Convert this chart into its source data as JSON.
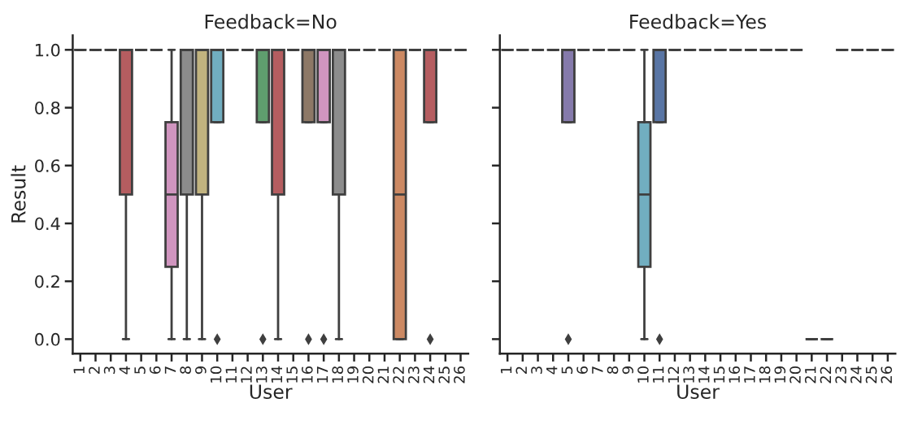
{
  "chart_data": [
    {
      "type": "box",
      "title": "Feedback=No",
      "xlabel": "User",
      "ylabel": "Result",
      "categories": [
        "1",
        "2",
        "3",
        "4",
        "5",
        "6",
        "7",
        "8",
        "9",
        "10",
        "11",
        "12",
        "13",
        "14",
        "15",
        "16",
        "17",
        "18",
        "19",
        "20",
        "21",
        "22",
        "23",
        "24",
        "25",
        "26"
      ],
      "colors": [
        null,
        null,
        null,
        "#b55d60",
        null,
        null,
        "#d095bf",
        "#8c8c8c",
        "#c1b37f",
        "#71aec0",
        null,
        null,
        "#5f9e6e",
        "#b55d60",
        null,
        "#8d7866",
        "#d095bf",
        "#8c8c8c",
        null,
        null,
        null,
        "#cc8963",
        null,
        "#b55d60",
        null,
        null
      ],
      "boxes": [
        {
          "low": 1,
          "q1": 1,
          "median": 1,
          "q3": 1,
          "high": 1
        },
        {
          "low": 1,
          "q1": 1,
          "median": 1,
          "q3": 1,
          "high": 1
        },
        {
          "low": 1,
          "q1": 1,
          "median": 1,
          "q3": 1,
          "high": 1
        },
        {
          "low": 0,
          "q1": 0.5,
          "median": 1,
          "q3": 1,
          "high": 1
        },
        {
          "low": 1,
          "q1": 1,
          "median": 1,
          "q3": 1,
          "high": 1
        },
        {
          "low": 1,
          "q1": 1,
          "median": 1,
          "q3": 1,
          "high": 1
        },
        {
          "low": 0,
          "q1": 0.25,
          "median": 0.5,
          "q3": 0.75,
          "high": 1
        },
        {
          "low": 0,
          "q1": 0.5,
          "median": 1,
          "q3": 1,
          "high": 1
        },
        {
          "low": 0,
          "q1": 0.5,
          "median": 1,
          "q3": 1,
          "high": 1
        },
        {
          "low": 0.75,
          "q1": 0.75,
          "median": 1,
          "q3": 1,
          "high": 1,
          "outliers": [
            0
          ]
        },
        {
          "low": 1,
          "q1": 1,
          "median": 1,
          "q3": 1,
          "high": 1
        },
        {
          "low": 1,
          "q1": 1,
          "median": 1,
          "q3": 1,
          "high": 1
        },
        {
          "low": 0.75,
          "q1": 0.75,
          "median": 1,
          "q3": 1,
          "high": 1,
          "outliers": [
            0
          ]
        },
        {
          "low": 0,
          "q1": 0.5,
          "median": 1,
          "q3": 1,
          "high": 1
        },
        {
          "low": 1,
          "q1": 1,
          "median": 1,
          "q3": 1,
          "high": 1
        },
        {
          "low": 0.75,
          "q1": 0.75,
          "median": 1,
          "q3": 1,
          "high": 1,
          "outliers": [
            0
          ]
        },
        {
          "low": 0.75,
          "q1": 0.75,
          "median": 1,
          "q3": 1,
          "high": 1,
          "outliers": [
            0
          ]
        },
        {
          "low": 0,
          "q1": 0.5,
          "median": 1,
          "q3": 1,
          "high": 1
        },
        {
          "low": 1,
          "q1": 1,
          "median": 1,
          "q3": 1,
          "high": 1
        },
        {
          "low": 1,
          "q1": 1,
          "median": 1,
          "q3": 1,
          "high": 1
        },
        {
          "low": 1,
          "q1": 1,
          "median": 1,
          "q3": 1,
          "high": 1
        },
        {
          "low": 0,
          "q1": 0,
          "median": 0.5,
          "q3": 1,
          "high": 1
        },
        {
          "low": 1,
          "q1": 1,
          "median": 1,
          "q3": 1,
          "high": 1
        },
        {
          "low": 0.75,
          "q1": 0.75,
          "median": 1,
          "q3": 1,
          "high": 1,
          "outliers": [
            0
          ]
        },
        {
          "low": 1,
          "q1": 1,
          "median": 1,
          "q3": 1,
          "high": 1
        },
        {
          "low": 1,
          "q1": 1,
          "median": 1,
          "q3": 1,
          "high": 1
        }
      ],
      "ylim": [
        -0.05,
        1.05
      ],
      "yticks": [
        {
          "value": 0,
          "label": "0.0"
        },
        {
          "value": 0.2,
          "label": "0.2"
        },
        {
          "value": 0.4,
          "label": "0.4"
        },
        {
          "value": 0.6,
          "label": "0.6"
        },
        {
          "value": 0.8,
          "label": "0.8"
        },
        {
          "value": 1,
          "label": "1.0"
        }
      ]
    },
    {
      "type": "box",
      "title": "Feedback=Yes",
      "xlabel": "User",
      "tick_labels": "x",
      "categories": [
        "1",
        "2",
        "3",
        "4",
        "5",
        "6",
        "7",
        "8",
        "9",
        "10",
        "11",
        "12",
        "13",
        "14",
        "15",
        "16",
        "17",
        "18",
        "19",
        "20",
        "21",
        "22",
        "23",
        "24",
        "25",
        "26"
      ],
      "colors": [
        null,
        null,
        null,
        null,
        "#857aab",
        null,
        null,
        null,
        null,
        "#71aec0",
        "#5975a4",
        null,
        null,
        null,
        null,
        null,
        null,
        null,
        null,
        null,
        null,
        null,
        null,
        null,
        null,
        null
      ],
      "boxes": [
        {
          "low": 1,
          "q1": 1,
          "median": 1,
          "q3": 1,
          "high": 1
        },
        {
          "low": 1,
          "q1": 1,
          "median": 1,
          "q3": 1,
          "high": 1
        },
        {
          "low": 1,
          "q1": 1,
          "median": 1,
          "q3": 1,
          "high": 1
        },
        {
          "low": 1,
          "q1": 1,
          "median": 1,
          "q3": 1,
          "high": 1
        },
        {
          "low": 0.75,
          "q1": 0.75,
          "median": 1,
          "q3": 1,
          "high": 1,
          "outliers": [
            0
          ]
        },
        {
          "low": 1,
          "q1": 1,
          "median": 1,
          "q3": 1,
          "high": 1
        },
        {
          "low": 1,
          "q1": 1,
          "median": 1,
          "q3": 1,
          "high": 1
        },
        {
          "low": 1,
          "q1": 1,
          "median": 1,
          "q3": 1,
          "high": 1
        },
        {
          "low": 1,
          "q1": 1,
          "median": 1,
          "q3": 1,
          "high": 1
        },
        {
          "low": 0,
          "q1": 0.25,
          "median": 0.5,
          "q3": 0.75,
          "high": 1
        },
        {
          "low": 0.75,
          "q1": 0.75,
          "median": 1,
          "q3": 1,
          "high": 1,
          "outliers": [
            0
          ]
        },
        {
          "low": 1,
          "q1": 1,
          "median": 1,
          "q3": 1,
          "high": 1
        },
        {
          "low": 1,
          "q1": 1,
          "median": 1,
          "q3": 1,
          "high": 1
        },
        {
          "low": 1,
          "q1": 1,
          "median": 1,
          "q3": 1,
          "high": 1
        },
        {
          "low": 1,
          "q1": 1,
          "median": 1,
          "q3": 1,
          "high": 1
        },
        {
          "low": 1,
          "q1": 1,
          "median": 1,
          "q3": 1,
          "high": 1
        },
        {
          "low": 1,
          "q1": 1,
          "median": 1,
          "q3": 1,
          "high": 1
        },
        {
          "low": 1,
          "q1": 1,
          "median": 1,
          "q3": 1,
          "high": 1
        },
        {
          "low": 1,
          "q1": 1,
          "median": 1,
          "q3": 1,
          "high": 1
        },
        {
          "low": 1,
          "q1": 1,
          "median": 1,
          "q3": 1,
          "high": 1
        },
        {
          "low": 0,
          "q1": 0,
          "median": 0,
          "q3": 0,
          "high": 0
        },
        {
          "low": 0,
          "q1": 0,
          "median": 0,
          "q3": 0,
          "high": 0
        },
        {
          "low": 1,
          "q1": 1,
          "median": 1,
          "q3": 1,
          "high": 1
        },
        {
          "low": 1,
          "q1": 1,
          "median": 1,
          "q3": 1,
          "high": 1
        },
        {
          "low": 1,
          "q1": 1,
          "median": 1,
          "q3": 1,
          "high": 1
        },
        {
          "low": 1,
          "q1": 1,
          "median": 1,
          "q3": 1,
          "high": 1
        }
      ],
      "ylim": [
        -0.05,
        1.05
      ],
      "yticks": [
        {
          "value": 0,
          "label": null
        },
        {
          "value": 0.2,
          "label": null
        },
        {
          "value": 0.4,
          "label": null
        },
        {
          "value": 0.6,
          "label": null
        },
        {
          "value": 0.8,
          "label": null
        },
        {
          "value": 1,
          "label": null
        }
      ]
    }
  ]
}
